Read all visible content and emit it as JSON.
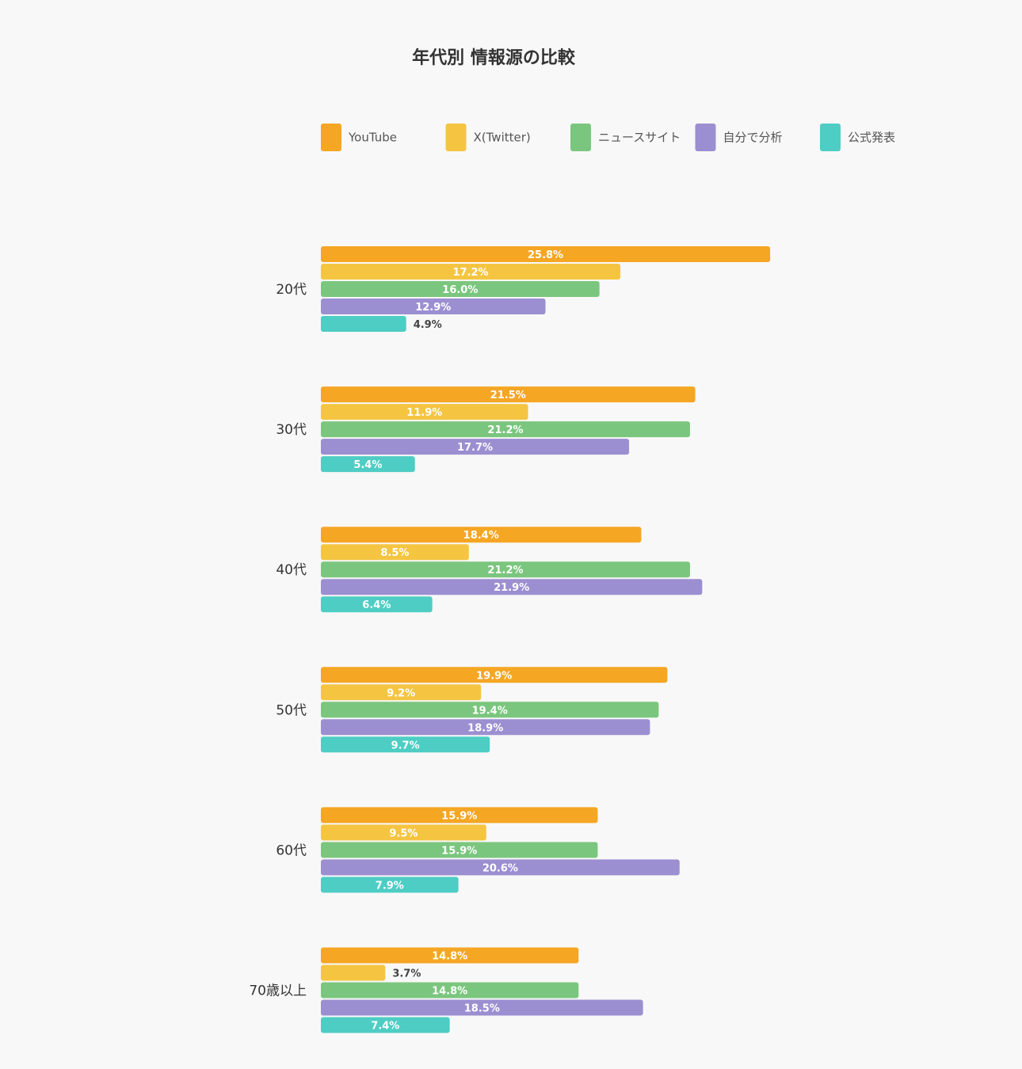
{
  "chart_data": {
    "type": "bar",
    "orientation": "horizontal",
    "title": "年代別 情報源の比較",
    "categories": [
      "20代",
      "30代",
      "40代",
      "50代",
      "60代",
      "70歳以上"
    ],
    "series": [
      {
        "name": "YouTube",
        "color": "#f5a623",
        "values": [
          25.8,
          21.5,
          18.4,
          19.9,
          15.9,
          14.8
        ]
      },
      {
        "name": "X(Twitter)",
        "color": "#f5c542",
        "values": [
          17.2,
          11.9,
          8.5,
          9.2,
          9.5,
          3.7
        ]
      },
      {
        "name": "ニュースサイト",
        "color": "#7bc67e",
        "values": [
          16.0,
          21.2,
          21.2,
          19.4,
          15.9,
          14.8
        ]
      },
      {
        "name": "自分で分析",
        "color": "#9b8fd1",
        "values": [
          12.9,
          17.7,
          21.9,
          18.9,
          20.6,
          18.5
        ]
      },
      {
        "name": "公式発表",
        "color": "#4ecdc4",
        "values": [
          4.9,
          5.4,
          6.4,
          9.7,
          7.9,
          7.4
        ]
      }
    ],
    "value_suffix": "%",
    "legend_position": "top",
    "grid": false,
    "xlabel": "",
    "ylabel": ""
  }
}
